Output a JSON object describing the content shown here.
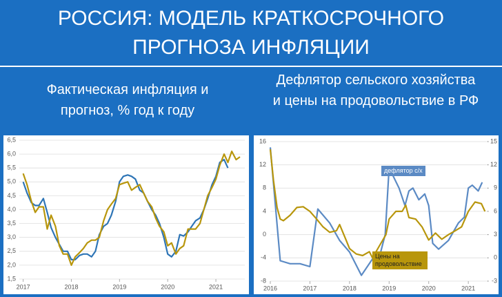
{
  "title": "РОССИЯ: МОДЕЛЬ КРАТКОСРОЧНОГО ПРОГНОЗА ИНФЛЯЦИИ",
  "chart_data": [
    {
      "type": "line",
      "title": "Фактическая инфляция и прогноз, % год к году",
      "xlim": [
        2016.92,
        2021.6
      ],
      "xticks": [
        2017,
        2018,
        2019,
        2020,
        2021
      ],
      "ylim": [
        1.5,
        6.5
      ],
      "yticks": [
        {
          "value": 1.5,
          "label": "1,5"
        },
        {
          "value": 2,
          "label": "2,0"
        },
        {
          "value": 2.5,
          "label": "2,5"
        },
        {
          "value": 3,
          "label": "3,0"
        },
        {
          "value": 3.5,
          "label": "3,5"
        },
        {
          "value": 4,
          "label": "4,0"
        },
        {
          "value": 4.5,
          "label": "4,5"
        },
        {
          "value": 5,
          "label": "5,0"
        },
        {
          "value": 5.5,
          "label": "5,5"
        },
        {
          "value": 6,
          "label": "6,0"
        },
        {
          "value": 6.5,
          "label": "6,5"
        }
      ],
      "grid": true,
      "series": [
        {
          "color": "#2e75b6",
          "x": [
            2017,
            2017.08,
            2017.17,
            2017.25,
            2017.33,
            2017.42,
            2017.5,
            2017.58,
            2017.67,
            2017.75,
            2017.83,
            2017.92,
            2018,
            2018.08,
            2018.17,
            2018.25,
            2018.33,
            2018.42,
            2018.5,
            2018.58,
            2018.67,
            2018.75,
            2018.83,
            2018.92,
            2019,
            2019.08,
            2019.17,
            2019.25,
            2019.33,
            2019.42,
            2019.5,
            2019.58,
            2019.67,
            2019.75,
            2019.83,
            2019.92,
            2020,
            2020.08,
            2020.17,
            2020.25,
            2020.33,
            2020.42,
            2020.5,
            2020.58,
            2020.67,
            2020.75,
            2020.83,
            2020.92,
            2021,
            2021.08,
            2021.17,
            2021.25
          ],
          "values": [
            5.0,
            4.6,
            4.25,
            4.15,
            4.15,
            4.4,
            3.9,
            3.35,
            3.0,
            2.75,
            2.5,
            2.5,
            2.2,
            2.2,
            2.35,
            2.4,
            2.4,
            2.3,
            2.5,
            3.1,
            3.4,
            3.5,
            3.8,
            4.3,
            5.0,
            5.2,
            5.25,
            5.2,
            5.1,
            4.7,
            4.6,
            4.3,
            4.0,
            3.8,
            3.5,
            3.0,
            2.4,
            2.3,
            2.5,
            3.1,
            3.05,
            3.2,
            3.4,
            3.6,
            3.7,
            4.0,
            4.4,
            4.9,
            5.2,
            5.7,
            5.8,
            5.5
          ]
        },
        {
          "color": "#b8960c",
          "x": [
            2017,
            2017.08,
            2017.17,
            2017.25,
            2017.33,
            2017.42,
            2017.5,
            2017.58,
            2017.67,
            2017.75,
            2017.83,
            2017.92,
            2018,
            2018.08,
            2018.17,
            2018.25,
            2018.33,
            2018.42,
            2018.5,
            2018.58,
            2018.67,
            2018.75,
            2018.83,
            2018.92,
            2019,
            2019.08,
            2019.17,
            2019.25,
            2019.33,
            2019.42,
            2019.5,
            2019.58,
            2019.67,
            2019.75,
            2019.83,
            2019.92,
            2020,
            2020.08,
            2020.17,
            2020.25,
            2020.33,
            2020.42,
            2020.5,
            2020.58,
            2020.67,
            2020.75,
            2020.83,
            2020.92,
            2021,
            2021.08,
            2021.17,
            2021.25,
            2021.33,
            2021.42,
            2021.5
          ],
          "values": [
            5.3,
            4.9,
            4.3,
            3.9,
            4.1,
            4.1,
            3.3,
            3.8,
            3.4,
            2.7,
            2.4,
            2.4,
            2.0,
            2.3,
            2.45,
            2.6,
            2.8,
            2.9,
            2.9,
            3.0,
            3.6,
            4.0,
            4.2,
            4.4,
            4.9,
            4.95,
            5.0,
            4.7,
            4.8,
            4.9,
            4.6,
            4.3,
            4.1,
            3.7,
            3.4,
            3.2,
            2.7,
            2.8,
            2.4,
            2.6,
            2.7,
            3.3,
            3.3,
            3.3,
            3.5,
            4.0,
            4.5,
            4.8,
            5.1,
            5.6,
            6.0,
            5.7,
            6.1,
            5.8,
            5.9
          ]
        }
      ]
    },
    {
      "type": "line",
      "title": "Дефлятор сельского хозяйства и цены на продовольствие в РФ",
      "xlim": [
        2016,
        2021.45
      ],
      "xticks": [
        2016,
        2017,
        2018,
        2019,
        2020,
        2021
      ],
      "ylim": [
        -8,
        16
      ],
      "yticks": [
        16,
        12,
        8,
        4,
        0,
        -4,
        -8
      ],
      "y2lim": [
        -3,
        15
      ],
      "y2ticks": [
        15,
        12,
        9,
        6,
        3,
        0,
        -3
      ],
      "grid": true,
      "series": [
        {
          "name": "дефлятор с/х",
          "color": "#5b8ac4",
          "x": [
            2016,
            2016.25,
            2016.5,
            2016.75,
            2017,
            2017.2,
            2017.5,
            2017.75,
            2018,
            2018.3,
            2018.6,
            2018.75,
            2018.9,
            2019,
            2019.25,
            2019.4,
            2019.5,
            2019.6,
            2019.75,
            2019.9,
            2020,
            2020.1,
            2020.25,
            2020.5,
            2020.75,
            2020.9,
            2021,
            2021.1,
            2021.25,
            2021.35
          ],
          "values": [
            15,
            -4.5,
            -5,
            -5,
            -5.5,
            4.4,
            2,
            -1,
            -3,
            -7,
            -4,
            -4,
            0,
            11.5,
            8,
            5,
            7.5,
            8,
            6,
            7,
            5,
            -1.5,
            -2.5,
            -1,
            2,
            3,
            8,
            8.5,
            7.5,
            9
          ]
        },
        {
          "name": "Цены на продовольствие",
          "color": "#b8960c",
          "axis": "y2",
          "x": [
            2016,
            2016.08,
            2016.17,
            2016.25,
            2016.33,
            2016.5,
            2016.67,
            2016.83,
            2017,
            2017.17,
            2017.33,
            2017.5,
            2017.67,
            2017.75,
            2017.92,
            2018,
            2018.17,
            2018.33,
            2018.5,
            2018.58,
            2018.75,
            2018.92,
            2019,
            2019.17,
            2019.33,
            2019.42,
            2019.5,
            2019.67,
            2019.83,
            2020,
            2020.17,
            2020.33,
            2020.5,
            2020.67,
            2020.83,
            2021,
            2021.17,
            2021.33,
            2021.42
          ],
          "values": [
            14,
            10,
            6.5,
            5,
            4.8,
            5.5,
            6.5,
            6.6,
            6,
            5,
            4,
            3.3,
            3.5,
            4.3,
            2.2,
            1.2,
            0.5,
            0.3,
            0.8,
            0,
            1.5,
            3,
            5,
            6,
            6,
            6.8,
            5.2,
            5,
            4,
            2.3,
            3.2,
            2.4,
            3,
            3.5,
            4,
            6,
            7.2,
            7,
            6
          ]
        }
      ]
    }
  ]
}
